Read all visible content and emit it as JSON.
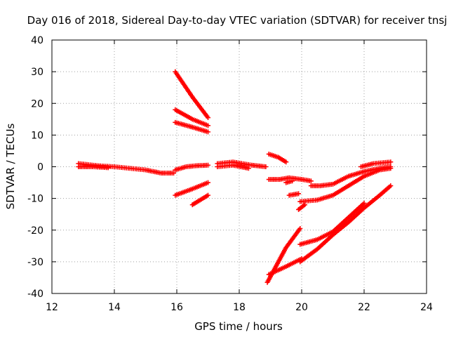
{
  "chart_data": {
    "type": "scatter",
    "title": "Day 016 of 2018, Sidereal Day-to-day VTEC variation (SDTVAR) for receiver tnsj",
    "xlabel": "GPS time / hours",
    "ylabel": "SDTVAR / TECUs",
    "xlim": [
      12,
      24
    ],
    "ylim": [
      -40,
      40
    ],
    "x_ticks": [
      12,
      14,
      16,
      18,
      20,
      22,
      24
    ],
    "y_ticks": [
      -40,
      -30,
      -20,
      -10,
      0,
      10,
      20,
      30,
      40
    ],
    "x_tick_labels": [
      "12",
      "14",
      "16",
      "18",
      "20",
      "22",
      "24"
    ],
    "y_tick_labels": [
      "-40",
      "-30",
      "-20",
      "-10",
      "0",
      "10",
      "20",
      "30",
      "40"
    ],
    "grid": true,
    "marker": "plus",
    "color": "#ff0000",
    "series": [
      {
        "points": [
          [
            12.85,
            1.0
          ],
          [
            13.5,
            0.3
          ],
          [
            14.0,
            0.0
          ],
          [
            14.5,
            -0.5
          ],
          [
            15.0,
            -1.0
          ],
          [
            15.5,
            -2.0
          ],
          [
            15.9,
            -2.0
          ]
        ]
      },
      {
        "points": [
          [
            12.85,
            0.0
          ],
          [
            13.3,
            0.0
          ],
          [
            13.8,
            -0.3
          ]
        ]
      },
      {
        "points": [
          [
            15.95,
            30.0
          ],
          [
            16.5,
            22.0
          ],
          [
            17.0,
            15.5
          ]
        ]
      },
      {
        "points": [
          [
            15.95,
            18.0
          ],
          [
            16.5,
            15.0
          ],
          [
            17.0,
            13.0
          ]
        ]
      },
      {
        "points": [
          [
            15.95,
            14.0
          ],
          [
            16.5,
            12.5
          ],
          [
            17.0,
            11.0
          ]
        ]
      },
      {
        "points": [
          [
            15.95,
            -1.0
          ],
          [
            16.3,
            0.0
          ],
          [
            16.6,
            0.3
          ],
          [
            17.0,
            0.5
          ]
        ]
      },
      {
        "points": [
          [
            15.95,
            -9.0
          ],
          [
            16.5,
            -7.0
          ],
          [
            17.0,
            -5.0
          ]
        ]
      },
      {
        "points": [
          [
            16.5,
            -12.0
          ],
          [
            16.75,
            -10.5
          ],
          [
            17.0,
            -9.0
          ]
        ]
      },
      {
        "points": [
          [
            17.3,
            1.0
          ],
          [
            17.8,
            1.5
          ],
          [
            18.4,
            0.5
          ],
          [
            18.85,
            0.0
          ]
        ]
      },
      {
        "points": [
          [
            17.3,
            0.0
          ],
          [
            17.8,
            0.5
          ],
          [
            18.3,
            -0.5
          ]
        ]
      },
      {
        "points": [
          [
            18.95,
            4.0
          ],
          [
            19.25,
            3.0
          ],
          [
            19.5,
            1.5
          ]
        ]
      },
      {
        "points": [
          [
            18.95,
            -4.0
          ],
          [
            19.3,
            -4.0
          ],
          [
            19.6,
            -3.5
          ],
          [
            20.0,
            -4.0
          ],
          [
            20.3,
            -4.5
          ]
        ]
      },
      {
        "points": [
          [
            19.5,
            -5.0
          ],
          [
            19.7,
            -4.5
          ]
        ]
      },
      {
        "points": [
          [
            19.6,
            -9.0
          ],
          [
            19.9,
            -8.5
          ]
        ]
      },
      {
        "points": [
          [
            19.9,
            -13.5
          ],
          [
            20.1,
            -12.0
          ]
        ]
      },
      {
        "points": [
          [
            20.3,
            -6.0
          ],
          [
            20.6,
            -6.0
          ],
          [
            21.0,
            -5.5
          ],
          [
            21.5,
            -3.0
          ],
          [
            22.0,
            -1.5
          ],
          [
            22.5,
            -0.5
          ],
          [
            22.85,
            0.0
          ]
        ]
      },
      {
        "points": [
          [
            21.9,
            0.0
          ],
          [
            22.3,
            1.0
          ],
          [
            22.85,
            1.5
          ]
        ]
      },
      {
        "points": [
          [
            19.95,
            -11.0
          ],
          [
            20.5,
            -10.5
          ],
          [
            21.0,
            -9.0
          ],
          [
            21.5,
            -6.0
          ],
          [
            22.0,
            -3.0
          ],
          [
            22.5,
            -1.0
          ],
          [
            22.85,
            -0.5
          ]
        ]
      },
      {
        "points": [
          [
            18.9,
            -36.5
          ],
          [
            19.2,
            -31.0
          ],
          [
            19.5,
            -25.5
          ],
          [
            19.95,
            -19.5
          ]
        ]
      },
      {
        "points": [
          [
            18.95,
            -34.0
          ],
          [
            19.5,
            -31.5
          ],
          [
            20.0,
            -29.0
          ]
        ]
      },
      {
        "points": [
          [
            19.95,
            -24.5
          ],
          [
            20.5,
            -23.0
          ],
          [
            21.0,
            -20.5
          ],
          [
            21.5,
            -16.0
          ],
          [
            22.0,
            -11.5
          ]
        ]
      },
      {
        "points": [
          [
            19.95,
            -30.0
          ],
          [
            20.5,
            -26.0
          ],
          [
            21.0,
            -21.5
          ],
          [
            21.5,
            -17.5
          ],
          [
            22.0,
            -13.0
          ],
          [
            22.5,
            -9.0
          ],
          [
            22.85,
            -6.0
          ]
        ]
      }
    ]
  }
}
